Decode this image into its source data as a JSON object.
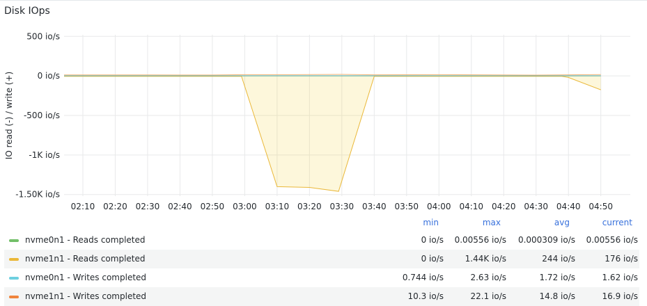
{
  "panel": {
    "title": "Disk IOps"
  },
  "chart_data": {
    "type": "area",
    "ylabel": "IO read (-) / write (+)",
    "yticks": [
      {
        "value": 500,
        "label": "500 io/s"
      },
      {
        "value": 0,
        "label": "0 io/s"
      },
      {
        "value": -500,
        "label": "-500 io/s"
      },
      {
        "value": -1000,
        "label": "-1K io/s"
      },
      {
        "value": -1500,
        "label": "-1.50K io/s"
      }
    ],
    "ylim": [
      -1520,
      520
    ],
    "xlim": [
      2.07,
      4.985
    ],
    "xticks": [
      {
        "value": 2.1667,
        "label": "02:10"
      },
      {
        "value": 2.3333,
        "label": "02:20"
      },
      {
        "value": 2.5,
        "label": "02:30"
      },
      {
        "value": 2.6667,
        "label": "02:40"
      },
      {
        "value": 2.8333,
        "label": "02:50"
      },
      {
        "value": 3.0,
        "label": "03:00"
      },
      {
        "value": 3.1667,
        "label": "03:10"
      },
      {
        "value": 3.3333,
        "label": "03:20"
      },
      {
        "value": 3.5,
        "label": "03:30"
      },
      {
        "value": 3.6667,
        "label": "03:40"
      },
      {
        "value": 3.8333,
        "label": "03:50"
      },
      {
        "value": 4.0,
        "label": "04:00"
      },
      {
        "value": 4.1667,
        "label": "04:10"
      },
      {
        "value": 4.3333,
        "label": "04:20"
      },
      {
        "value": 4.5,
        "label": "04:30"
      },
      {
        "value": 4.6667,
        "label": "04:40"
      },
      {
        "value": 4.8333,
        "label": "04:50"
      }
    ],
    "grid": true,
    "series": [
      {
        "name": "nvme0n1 - Reads completed",
        "color": "#73bf69",
        "x": [
          2.07,
          3.0,
          3.5,
          4.0,
          4.8333
        ],
        "y": [
          0,
          0,
          0,
          0,
          0
        ]
      },
      {
        "name": "nvme1n1 - Reads completed",
        "color": "#f2cc0c",
        "stroke": "#eab839",
        "fill": "rgba(242, 204, 12, 0.15)",
        "x": [
          2.07,
          2.9833,
          3.1667,
          3.3333,
          3.4833,
          3.6667,
          4.6333,
          4.6667,
          4.8333
        ],
        "y": [
          -5,
          -5,
          -1400,
          -1410,
          -1460,
          -5,
          -5,
          -20,
          -176
        ]
      },
      {
        "name": "nvme0n1 - Writes completed",
        "color": "#8ab8ff",
        "stroke": "#5eb6c7",
        "x": [
          2.07,
          3.0,
          3.5,
          4.0,
          4.8333
        ],
        "y": [
          2,
          2,
          2,
          2,
          2
        ]
      },
      {
        "name": "nvme1n1 - Writes completed",
        "color": "#ff780a",
        "stroke": "#f2b26f",
        "x": [
          2.07,
          2.5,
          2.8333,
          3.0,
          3.25,
          3.5,
          3.6667,
          4.0,
          4.5,
          4.8333
        ],
        "y": [
          12,
          12,
          11,
          16,
          15,
          19,
          13,
          16,
          10,
          17
        ]
      }
    ]
  },
  "legend": {
    "headers": {
      "min": "min",
      "max": "max",
      "avg": "avg",
      "current": "current"
    },
    "rows": [
      {
        "name": "nvme0n1 - Reads completed",
        "color": "#73bf69",
        "min": "0 io/s",
        "max": "0.00556 io/s",
        "avg": "0.000309 io/s",
        "current": "0.00556 io/s"
      },
      {
        "name": "nvme1n1 - Reads completed",
        "color": "#eab839",
        "min": "0 io/s",
        "max": "1.44K io/s",
        "avg": "244 io/s",
        "current": "176 io/s"
      },
      {
        "name": "nvme0n1 - Writes completed",
        "color": "#6ed0e0",
        "min": "0.744 io/s",
        "max": "2.63 io/s",
        "avg": "1.72 io/s",
        "current": "1.62 io/s"
      },
      {
        "name": "nvme1n1 - Writes completed",
        "color": "#ef843c",
        "min": "10.3 io/s",
        "max": "22.1 io/s",
        "avg": "14.8 io/s",
        "current": "16.9 io/s"
      }
    ]
  }
}
